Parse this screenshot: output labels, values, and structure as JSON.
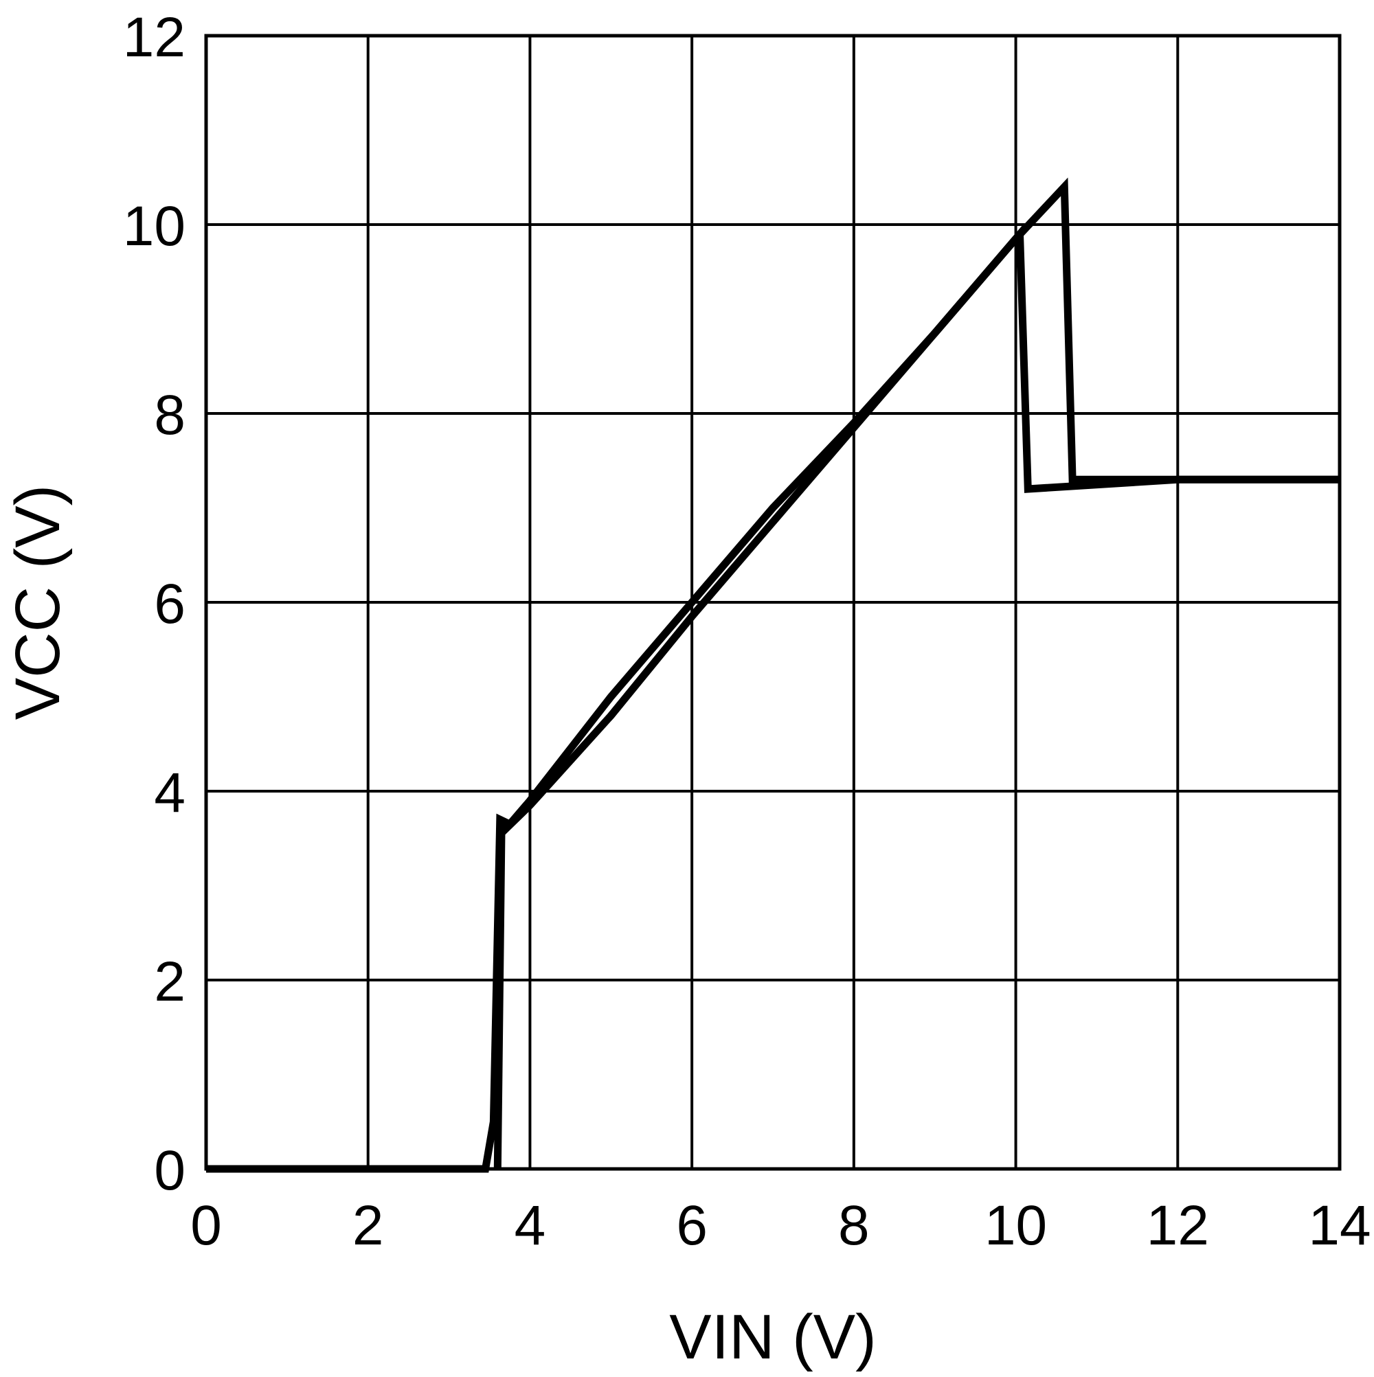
{
  "chart_data": {
    "type": "line",
    "title": "",
    "xlabel": "VIN (V)",
    "ylabel": "VCC (V)",
    "xlim": [
      0,
      14
    ],
    "ylim": [
      0,
      12
    ],
    "xticks": [
      0,
      2,
      4,
      6,
      8,
      10,
      12,
      14
    ],
    "yticks": [
      0,
      2,
      4,
      6,
      8,
      10,
      12
    ],
    "grid": true,
    "legend": "none",
    "colors": {
      "line": "#000000",
      "grid": "#000000",
      "background": "#ffffff"
    },
    "series": [
      {
        "points": [
          [
            0.0,
            0.0
          ],
          [
            3.45,
            0.0
          ],
          [
            3.55,
            0.5
          ],
          [
            3.63,
            3.7
          ],
          [
            3.75,
            3.65
          ],
          [
            4.0,
            3.9
          ],
          [
            4.5,
            4.45
          ],
          [
            5.0,
            5.0
          ],
          [
            6.0,
            6.0
          ],
          [
            7.0,
            7.0
          ],
          [
            8.0,
            7.9
          ],
          [
            9.0,
            8.85
          ],
          [
            10.0,
            9.85
          ],
          [
            10.6,
            10.4
          ],
          [
            10.7,
            7.3
          ],
          [
            12.0,
            7.3
          ],
          [
            14.0,
            7.3
          ]
        ]
      },
      {
        "points": [
          [
            14.0,
            7.3
          ],
          [
            12.0,
            7.3
          ],
          [
            10.15,
            7.2
          ],
          [
            10.05,
            9.9
          ],
          [
            9.0,
            8.85
          ],
          [
            8.0,
            7.85
          ],
          [
            7.0,
            6.85
          ],
          [
            6.0,
            5.85
          ],
          [
            5.0,
            4.8
          ],
          [
            4.0,
            3.85
          ],
          [
            3.7,
            3.6
          ],
          [
            3.65,
            3.7
          ],
          [
            3.6,
            0.0
          ]
        ]
      }
    ]
  }
}
